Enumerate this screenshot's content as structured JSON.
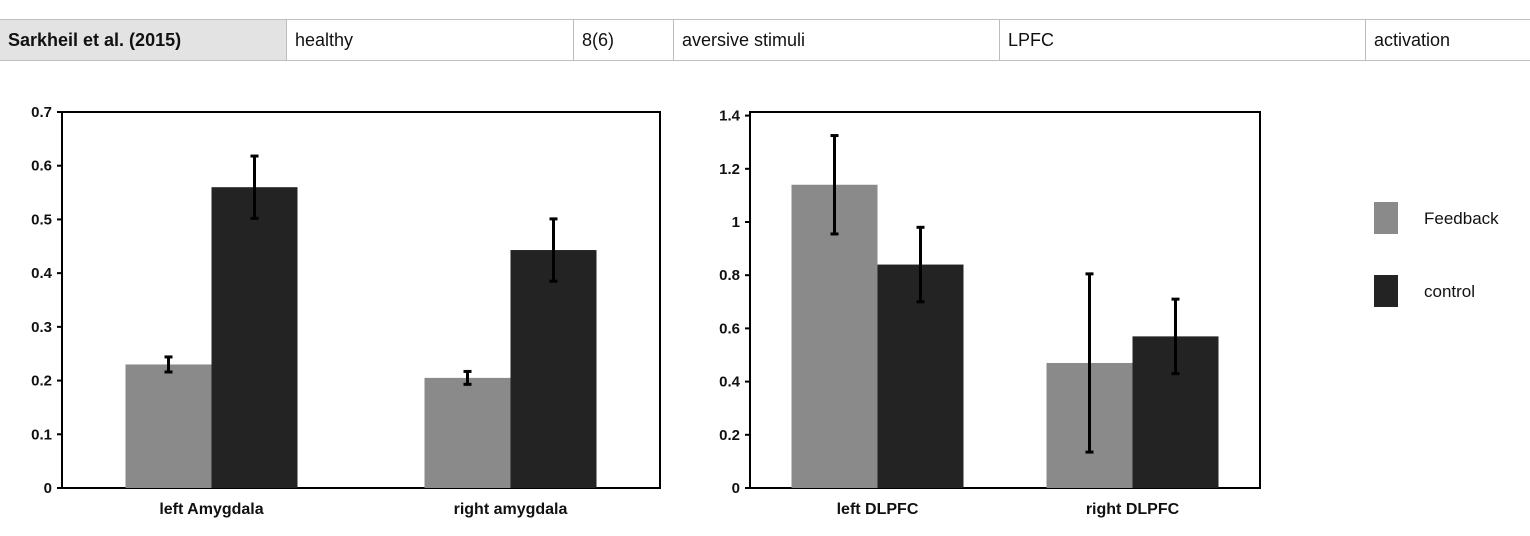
{
  "table_row": {
    "cells": [
      "Sarkheil et al. (2015)",
      "healthy",
      "8(6)",
      "aversive stimuli",
      "LPFC",
      "activation"
    ]
  },
  "chart_data": [
    {
      "type": "bar",
      "categories": [
        "left Amygdala",
        "right amygdala"
      ],
      "series": [
        {
          "values": [
            0.23,
            0.205
          ],
          "errors": [
            0.014,
            0.012
          ]
        },
        {
          "values": [
            0.56,
            0.443
          ],
          "errors": [
            0.058,
            0.058
          ]
        }
      ],
      "ylim": [
        0,
        0.7
      ],
      "yticks": [
        "0",
        "0.1",
        "0.2",
        "0.3",
        "0.4",
        "0.5",
        "0.6",
        "0.7"
      ],
      "colors": [
        "#8a8a8a",
        "#232323"
      ]
    },
    {
      "type": "bar",
      "categories": [
        "left DLPFC",
        "right DLPFC"
      ],
      "series": [
        {
          "name": "Feedback",
          "values": [
            1.14,
            0.47
          ],
          "errors": [
            0.185,
            0.335
          ]
        },
        {
          "name": "control",
          "values": [
            0.84,
            0.57
          ],
          "errors": [
            0.14,
            0.14
          ]
        }
      ],
      "ylim": [
        0,
        1.5
      ],
      "yticks": [
        "0",
        "0.2",
        "0.4",
        "0.6",
        "0.8",
        "1",
        "1.2",
        "1.4"
      ],
      "legend": [
        "Feedback",
        "control"
      ],
      "legend_position": "right",
      "colors": [
        "#8a8a8a",
        "#232323"
      ]
    }
  ]
}
